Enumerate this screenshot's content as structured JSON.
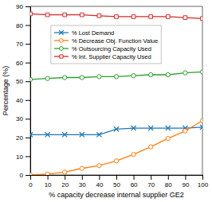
{
  "chart_data": {
    "type": "line",
    "x": [
      0,
      10,
      20,
      30,
      40,
      50,
      60,
      70,
      80,
      90,
      100
    ],
    "series": [
      {
        "name": "% Lost Demand",
        "marker": "x",
        "values": [
          21.5,
          21.5,
          21.5,
          21.5,
          21.5,
          24.5,
          25.0,
          25.0,
          25.0,
          25.0,
          25.5
        ]
      },
      {
        "name": "% Decrease Obj. Function Value",
        "marker": "circle",
        "values": [
          0.0,
          0.5,
          1.5,
          3.5,
          5.0,
          7.5,
          11.0,
          15.0,
          19.5,
          23.5,
          29.0
        ]
      },
      {
        "name": "% Outsourcing Capacity Used",
        "marker": "circle",
        "values": [
          51.0,
          51.5,
          52.0,
          52.0,
          52.5,
          52.5,
          53.0,
          53.5,
          53.5,
          54.5,
          55.0
        ]
      },
      {
        "name": "% Int. Supplier Capacity Used",
        "marker": "square",
        "values": [
          86.0,
          85.5,
          85.5,
          85.5,
          85.0,
          84.5,
          84.5,
          84.5,
          84.5,
          84.0,
          83.5
        ]
      }
    ],
    "xlabel": "% capacity decrease internal supplier GE2",
    "ylabel": "Percentage (%)",
    "xlim": [
      0,
      100
    ],
    "ylim": [
      0,
      90
    ],
    "xticks": [
      0,
      10,
      20,
      30,
      40,
      50,
      60,
      70,
      80,
      90,
      100
    ],
    "yticks": [
      0,
      10,
      20,
      30,
      40,
      50,
      60,
      70,
      80,
      90
    ],
    "legend": "upper left",
    "grid": false
  }
}
